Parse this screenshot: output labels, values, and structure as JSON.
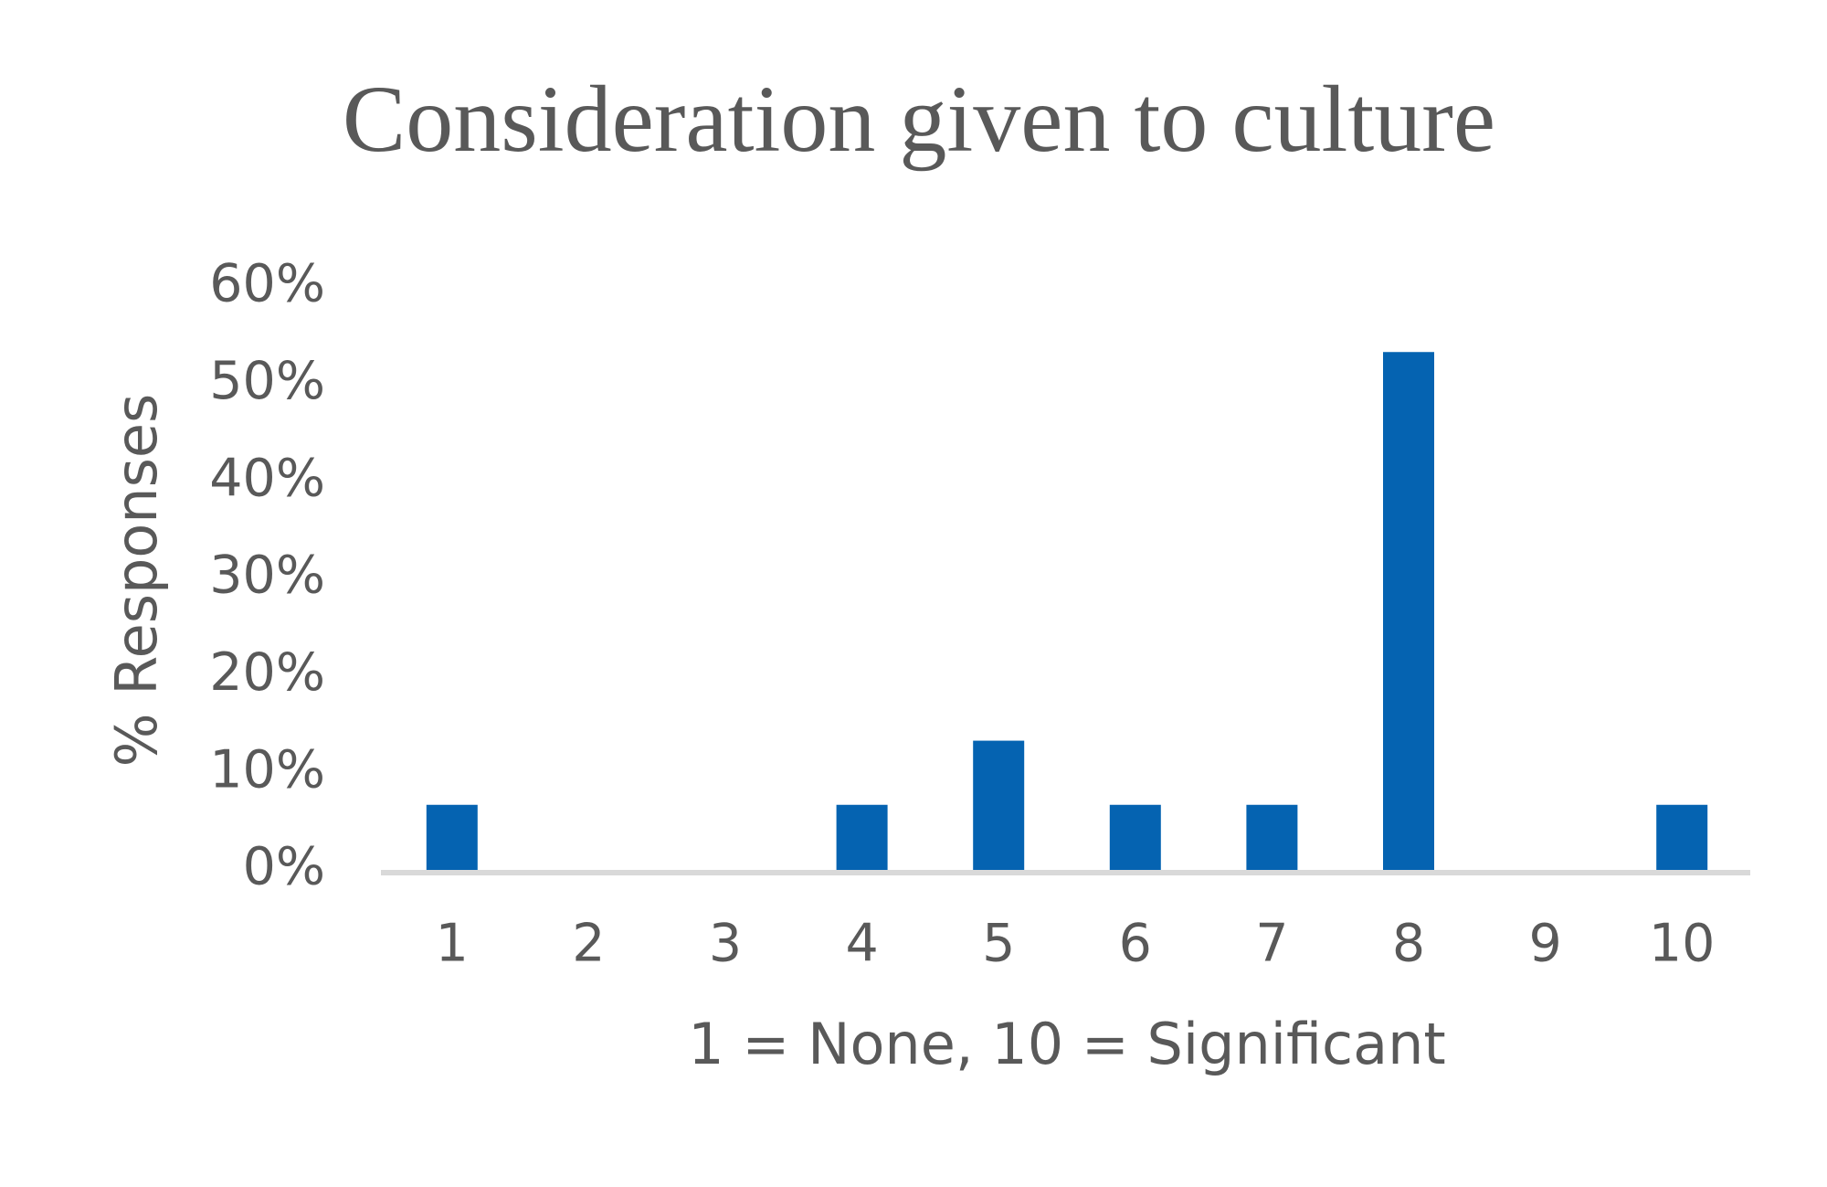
{
  "chart_data": {
    "type": "bar",
    "title": "Consideration given to culture",
    "x_label": "1 = None, 10 = Significant",
    "y_label": "% Responses",
    "categories": [
      "1",
      "2",
      "3",
      "4",
      "5",
      "6",
      "7",
      "8",
      "9",
      "10"
    ],
    "values": [
      6.7,
      0,
      0,
      6.7,
      13.3,
      6.7,
      6.7,
      53.3,
      0,
      6.7
    ],
    "color": "#0563b1",
    "ylim": [
      0,
      60
    ],
    "yticks": [
      {
        "value": 0,
        "label": "0%"
      },
      {
        "value": 10,
        "label": "10%"
      },
      {
        "value": 20,
        "label": "20%"
      },
      {
        "value": 30,
        "label": "30%"
      },
      {
        "value": 40,
        "label": "40%"
      },
      {
        "value": 50,
        "label": "50%"
      },
      {
        "value": 60,
        "label": "60%"
      }
    ],
    "grid": false
  }
}
